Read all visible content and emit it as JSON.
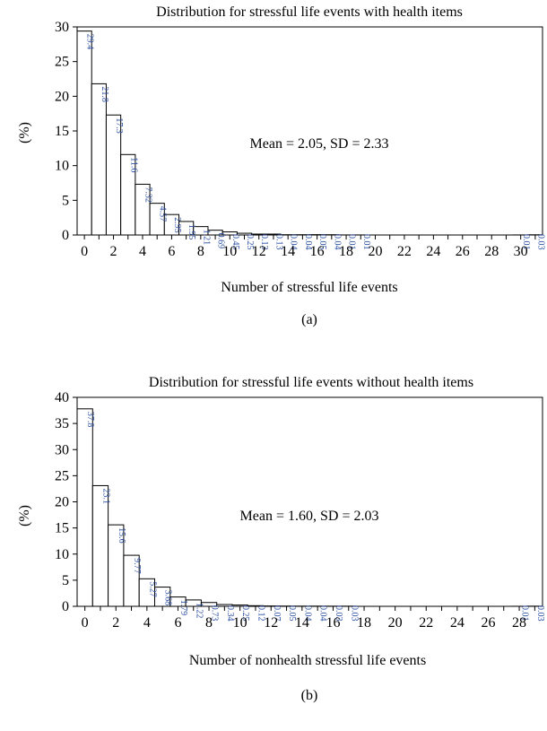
{
  "chart_data": [
    {
      "type": "bar",
      "panel_label": "(a)",
      "title": "Distribution for stressful life events with health items",
      "xlabel": "Number of stressful life events",
      "ylabel": "(%)",
      "annotation": "Mean = 2.05, SD = 2.33",
      "ylim": [
        0,
        30
      ],
      "yticks": [
        0,
        5,
        10,
        15,
        20,
        25,
        30
      ],
      "xticks": [
        0,
        2,
        4,
        6,
        8,
        10,
        12,
        14,
        16,
        18,
        20,
        22,
        24,
        26,
        28,
        30
      ],
      "x_range": [
        0,
        31
      ],
      "x": [
        0,
        1,
        2,
        3,
        4,
        5,
        6,
        7,
        8,
        9,
        10,
        11,
        12,
        13,
        14,
        15,
        16,
        17,
        18,
        19,
        30,
        31
      ],
      "values": [
        29.4,
        21.8,
        17.3,
        11.6,
        7.32,
        4.57,
        2.95,
        1.95,
        1.21,
        0.69,
        0.45,
        0.25,
        0.13,
        0.13,
        0.04,
        0.04,
        0.05,
        0.04,
        0.01,
        0.01,
        0.01,
        0.03
      ],
      "labels": [
        "29.4",
        "21.8",
        "17.3",
        "11.6",
        "7.32",
        "4.57",
        "2.95",
        "1.95",
        "1.21",
        "0.69",
        "0.45",
        "0.25",
        "0.13",
        "0.13",
        "0.04",
        "0.04",
        "0.05",
        "0.04",
        "0.01",
        "0.01",
        "0.01",
        "0.03"
      ],
      "bar_color": "#ffffff",
      "label_color": "#2b4fa3"
    },
    {
      "type": "bar",
      "panel_label": "(b)",
      "title": "Distribution for stressful life events without health items",
      "xlabel": "Number of nonhealth stressful life events",
      "ylabel": "(%)",
      "annotation": "Mean = 1.60, SD = 2.03",
      "ylim": [
        0,
        40
      ],
      "yticks": [
        0,
        5,
        10,
        15,
        20,
        25,
        30,
        35,
        40
      ],
      "xticks": [
        0,
        2,
        4,
        6,
        8,
        10,
        12,
        14,
        16,
        18,
        20,
        22,
        24,
        26,
        28
      ],
      "x_range": [
        0,
        29
      ],
      "x": [
        0,
        1,
        2,
        3,
        4,
        5,
        6,
        7,
        8,
        9,
        10,
        11,
        12,
        13,
        14,
        15,
        16,
        17,
        28,
        29
      ],
      "values": [
        37.8,
        23.1,
        15.6,
        9.77,
        5.27,
        3.68,
        1.79,
        1.22,
        0.73,
        0.34,
        0.25,
        0.12,
        0.07,
        0.05,
        0.04,
        0.04,
        0.03,
        0.03,
        0.01,
        0.03
      ],
      "labels": [
        "37.8",
        "23.1",
        "15.6",
        "9.77",
        "5.27",
        "3.68",
        "1.79",
        "1.22",
        "0.73",
        "0.34",
        "0.25",
        "0.12",
        "0.07",
        "0.05",
        "0.04",
        "0.04",
        "0.03",
        "0.03",
        "0.01",
        "0.03"
      ],
      "bar_color": "#ffffff",
      "label_color": "#2b4fa3"
    }
  ]
}
